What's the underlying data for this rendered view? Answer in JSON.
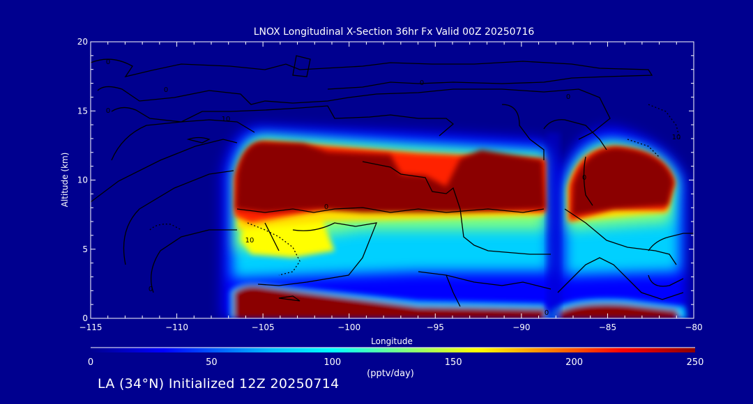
{
  "chart_data": {
    "type": "heatmap",
    "title": "LNOX Longitudinal X-Section 36hr  Fx Valid 00Z 20250716",
    "xlabel": "Longitude",
    "ylabel": "Altitude (km)",
    "xlim": [
      -115,
      -80
    ],
    "ylim": [
      0,
      20
    ],
    "x_ticks": [
      "-115",
      "-110",
      "-105",
      "-100",
      "-95",
      "-90",
      "-85",
      "-80"
    ],
    "y_ticks": [
      "0",
      "5",
      "10",
      "15",
      "20"
    ],
    "colorbar": {
      "label": "(pptv/day)",
      "range": [
        0,
        250
      ],
      "ticks": [
        "0",
        "50",
        "100",
        "150",
        "200",
        "250"
      ],
      "colors": [
        "#00008f",
        "#0000ff",
        "#00bfff",
        "#00ffff",
        "#7fff7f",
        "#ffff00",
        "#ff7f00",
        "#ff0000",
        "#8b0000"
      ]
    },
    "contour_labels": [
      "0",
      "0",
      "0",
      "0",
      "0",
      "10",
      "10",
      "0",
      "10",
      "0",
      "0",
      "0"
    ],
    "field": [
      {
        "lon_range": [
          -106.8,
          -88.2
        ],
        "alt_range": [
          8.0,
          12.8
        ],
        "value": 250
      },
      {
        "lon_range": [
          -86.3,
          -81.3
        ],
        "alt_range": [
          7.0,
          12.3
        ],
        "value": 250
      },
      {
        "lon_range": [
          -106.8,
          -88.5
        ],
        "alt_range": [
          3.0,
          8.0
        ],
        "value": 110
      },
      {
        "lon_range": [
          -105,
          -100
        ],
        "alt_range": [
          5.0,
          7.0
        ],
        "value": 170
      },
      {
        "lon_range": [
          -106.8,
          -88.5
        ],
        "alt_range": [
          0.0,
          2.3
        ],
        "value": 250
      },
      {
        "lon_range": [
          -87.7,
          -81.3
        ],
        "alt_range": [
          0.0,
          1.0
        ],
        "value": 250
      }
    ]
  },
  "footer": {
    "text": "LA (34°N) Initialized 12Z 20250714"
  },
  "colors": {
    "background": "#00008f",
    "text": "#ffffff",
    "contour": "#000000"
  }
}
